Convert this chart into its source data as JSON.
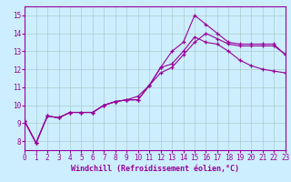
{
  "background_color": "#cceeff",
  "grid_color": "#aacccc",
  "line_color": "#990099",
  "xlim": [
    0,
    23
  ],
  "ylim": [
    7.5,
    15.5
  ],
  "xticks": [
    0,
    1,
    2,
    3,
    4,
    5,
    6,
    7,
    8,
    9,
    10,
    11,
    12,
    13,
    14,
    15,
    16,
    17,
    18,
    19,
    20,
    21,
    22,
    23
  ],
  "yticks": [
    8,
    9,
    10,
    11,
    12,
    13,
    14,
    15
  ],
  "xlabel": "Windchill (Refroidissement éolien,°C)",
  "line1_x": [
    0,
    1,
    2,
    3,
    4,
    5,
    6,
    7,
    8,
    9,
    10,
    11,
    12,
    13,
    14,
    15,
    16,
    17,
    18,
    19,
    20,
    21,
    22,
    23
  ],
  "line1_y": [
    9.1,
    7.9,
    9.4,
    9.3,
    9.6,
    9.6,
    9.6,
    10.0,
    10.2,
    10.3,
    10.3,
    11.1,
    12.1,
    13.0,
    13.5,
    15.0,
    14.5,
    14.0,
    13.5,
    13.4,
    13.4,
    13.4,
    13.4,
    12.8
  ],
  "line2_x": [
    0,
    1,
    2,
    3,
    4,
    5,
    6,
    7,
    8,
    9,
    10,
    11,
    12,
    13,
    14,
    15,
    16,
    17,
    18,
    19,
    20,
    21,
    22,
    23
  ],
  "line2_y": [
    9.1,
    7.9,
    9.4,
    9.3,
    9.6,
    9.6,
    9.6,
    10.0,
    10.2,
    10.3,
    10.3,
    11.1,
    12.1,
    12.3,
    13.0,
    13.8,
    13.5,
    13.4,
    13.0,
    12.5,
    12.2,
    12.0,
    11.9,
    11.8
  ],
  "line3_x": [
    0,
    1,
    2,
    3,
    4,
    5,
    6,
    7,
    8,
    9,
    10,
    11,
    12,
    13,
    14,
    15,
    16,
    17,
    18,
    19,
    20,
    21,
    22,
    23
  ],
  "line3_y": [
    9.1,
    7.9,
    9.4,
    9.3,
    9.6,
    9.6,
    9.6,
    10.0,
    10.2,
    10.3,
    10.5,
    11.1,
    11.8,
    12.1,
    12.8,
    13.5,
    14.0,
    13.7,
    13.4,
    13.3,
    13.3,
    13.3,
    13.3,
    12.85
  ]
}
